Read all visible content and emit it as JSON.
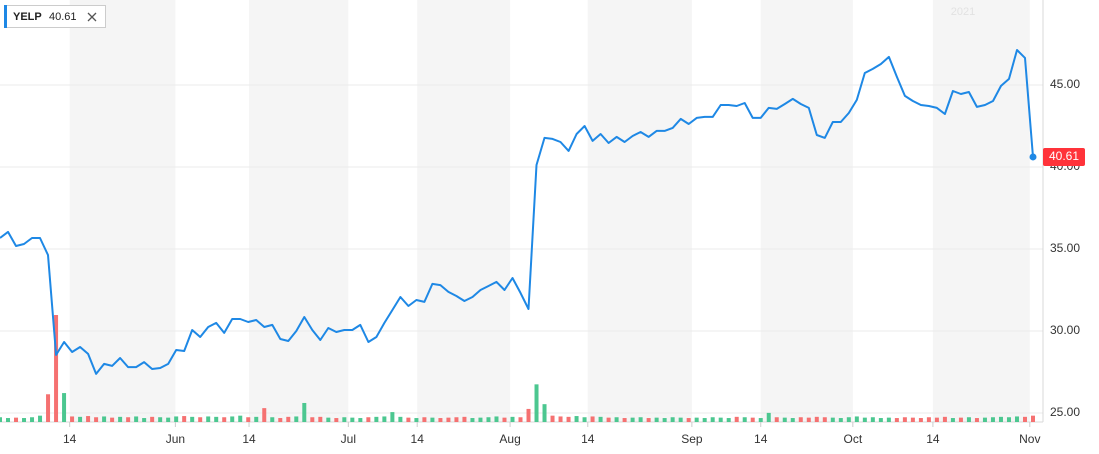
{
  "chart_data": {
    "type": "line",
    "watermark": "2021",
    "series": [
      {
        "name": "YELP",
        "color": "#1e88e5",
        "values": [
          35.67,
          36.04,
          35.18,
          35.3,
          35.67,
          35.67,
          34.63,
          28.54,
          29.33,
          28.72,
          29.02,
          28.6,
          27.38,
          27.99,
          27.87,
          28.35,
          27.8,
          27.8,
          28.1,
          27.68,
          27.74,
          27.99,
          28.84,
          28.78,
          30.06,
          29.63,
          30.24,
          30.49,
          29.88,
          30.73,
          30.73,
          30.55,
          30.67,
          30.24,
          30.37,
          29.51,
          29.39,
          30.0,
          30.85,
          30.06,
          29.45,
          30.18,
          29.94,
          30.06,
          30.06,
          30.37,
          29.33,
          29.63,
          30.49,
          31.28,
          32.07,
          31.52,
          31.89,
          31.77,
          32.87,
          32.8,
          32.38,
          32.13,
          31.83,
          32.07,
          32.5,
          32.74,
          32.99,
          32.5,
          33.23,
          32.32,
          31.34,
          40.12,
          41.77,
          41.71,
          41.52,
          40.98,
          42.01,
          42.5,
          41.59,
          42.01,
          41.46,
          41.83,
          41.52,
          41.89,
          42.13,
          41.83,
          42.2,
          42.2,
          42.38,
          42.93,
          42.62,
          42.99,
          43.05,
          43.05,
          43.78,
          43.78,
          43.72,
          43.9,
          42.99,
          42.99,
          43.6,
          43.54,
          43.84,
          44.15,
          43.84,
          43.6,
          41.95,
          41.77,
          42.74,
          42.74,
          43.29,
          44.09,
          45.73,
          45.98,
          46.28,
          46.71,
          45.49,
          44.33,
          44.02,
          43.78,
          43.72,
          43.6,
          43.23,
          44.63,
          44.45,
          44.57,
          43.66,
          43.78,
          44.02,
          44.94,
          45.37,
          47.13,
          46.65,
          40.61
        ]
      }
    ],
    "volume": {
      "up_color": "#4cc790",
      "down_color": "#f57171",
      "values": [
        1.2,
        1.0,
        1.1,
        1.0,
        1.2,
        1.6,
        7.0,
        27.0,
        7.3,
        1.4,
        1.3,
        1.5,
        1.2,
        1.4,
        1.1,
        1.3,
        1.2,
        1.4,
        1.0,
        1.3,
        1.2,
        1.1,
        1.4,
        1.5,
        1.3,
        1.2,
        1.4,
        1.3,
        1.2,
        1.4,
        1.6,
        1.2,
        1.3,
        3.5,
        1.2,
        1.0,
        1.3,
        1.4,
        4.8,
        1.2,
        1.3,
        1.1,
        1.0,
        1.2,
        1.1,
        1.0,
        1.2,
        1.3,
        1.4,
        2.5,
        1.3,
        1.1,
        1.0,
        1.2,
        1.1,
        1.0,
        1.1,
        1.2,
        1.3,
        1.0,
        1.1,
        1.2,
        1.4,
        1.1,
        1.3,
        1.2,
        3.3,
        9.5,
        4.5,
        1.6,
        1.4,
        1.3,
        1.5,
        1.2,
        1.4,
        1.3,
        1.1,
        1.2,
        1.0,
        1.1,
        1.2,
        1.0,
        1.1,
        1.0,
        1.2,
        1.1,
        1.0,
        1.1,
        1.0,
        1.2,
        1.1,
        1.0,
        1.3,
        1.2,
        1.1,
        1.0,
        2.3,
        1.2,
        1.1,
        1.0,
        1.2,
        1.1,
        1.3,
        1.2,
        1.1,
        1.0,
        1.2,
        1.4,
        1.1,
        1.2,
        1.0,
        1.1,
        1.0,
        1.2,
        1.1,
        1.0,
        1.2,
        1.1,
        1.3,
        1.0,
        1.1,
        1.2,
        1.0,
        1.1,
        1.2,
        1.3,
        1.2,
        1.4,
        1.3,
        1.6
      ]
    },
    "xlim": [
      0,
      129
    ],
    "xticks": [
      {
        "value": 8.7,
        "label": "14"
      },
      {
        "value": 21.9,
        "label": "Jun"
      },
      {
        "value": 31.1,
        "label": "14"
      },
      {
        "value": 43.5,
        "label": "Jul"
      },
      {
        "value": 52.1,
        "label": "14"
      },
      {
        "value": 63.7,
        "label": "Aug"
      },
      {
        "value": 73.4,
        "label": "14"
      },
      {
        "value": 86.4,
        "label": "Sep"
      },
      {
        "value": 95.0,
        "label": "14"
      },
      {
        "value": 106.5,
        "label": "Oct"
      },
      {
        "value": 116.5,
        "label": "14"
      },
      {
        "value": 128.6,
        "label": "Nov"
      }
    ],
    "ylim": [
      24.45,
      50.18
    ],
    "yticks": [
      {
        "value": 25,
        "label": "25.00"
      },
      {
        "value": 30,
        "label": "30.00"
      },
      {
        "value": 35,
        "label": "35.00"
      },
      {
        "value": 40,
        "label": "40.00"
      },
      {
        "value": 45,
        "label": "45.00"
      }
    ],
    "grid": true
  }
}
